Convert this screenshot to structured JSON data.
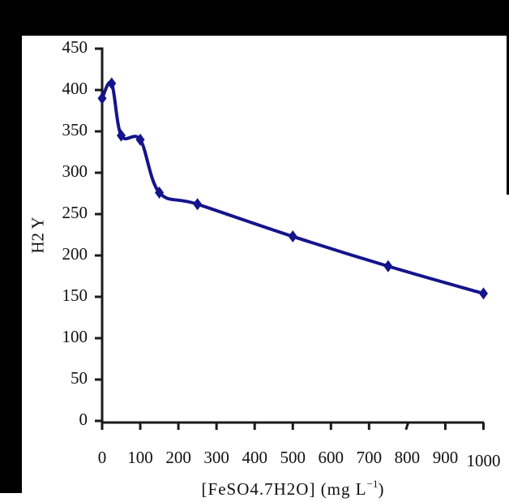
{
  "figure": {
    "background": "#ffffff",
    "frame_color": "#000000",
    "axis_color": "#1a1a1a",
    "text_color": "#111111"
  },
  "chart_data": {
    "type": "line",
    "title": "",
    "xlabel": "[FeSO4.7H2O] (mg L−1)",
    "xlabel_parts": {
      "pre": "[FeSO4.7H2O] (mg L",
      "sup": "−1",
      "post": ")"
    },
    "ylabel": "H2 Y",
    "x": [
      0,
      25,
      50,
      100,
      150,
      250,
      500,
      750,
      1000
    ],
    "y": [
      390,
      408,
      345,
      340,
      276,
      262,
      223,
      187,
      154
    ],
    "xlim": [
      0,
      1000
    ],
    "ylim": [
      0,
      450
    ],
    "x_ticks": [
      0,
      100,
      200,
      300,
      400,
      500,
      600,
      700,
      800,
      900,
      1000
    ],
    "y_ticks": [
      0,
      50,
      100,
      150,
      200,
      250,
      300,
      350,
      400,
      450
    ],
    "grid": false,
    "legend": false,
    "line_color": "#14148c",
    "marker": "diamond",
    "marker_color": "#14148c",
    "quirks": {
      "slanted_x_tick": 800,
      "lowered_x_label": 1000
    }
  }
}
